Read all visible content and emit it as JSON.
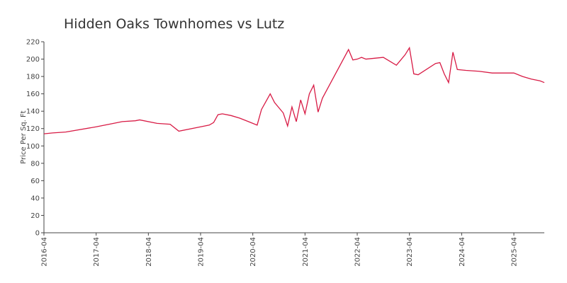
{
  "chart_data": {
    "type": "line",
    "title": "Hidden Oaks Townhomes vs Lutz",
    "ylabel": "Price Per Sq. Ft",
    "x": [
      "2016-04",
      "2016-06",
      "2016-09",
      "2017-04",
      "2017-08",
      "2017-10",
      "2018-01",
      "2018-02",
      "2018-06",
      "2018-09",
      "2018-11",
      "2019-04",
      "2019-06",
      "2019-07",
      "2019-08",
      "2019-09",
      "2019-11",
      "2020-01",
      "2020-03",
      "2020-05",
      "2020-06",
      "2020-08",
      "2020-09",
      "2020-11",
      "2020-12",
      "2021-01",
      "2021-02",
      "2021-03",
      "2021-04",
      "2021-05",
      "2021-06",
      "2021-07",
      "2021-08",
      "2022-02",
      "2022-03",
      "2022-04",
      "2022-05",
      "2022-06",
      "2022-08",
      "2022-10",
      "2023-01",
      "2023-02",
      "2023-03",
      "2023-04",
      "2023-05",
      "2023-06",
      "2023-10",
      "2023-11",
      "2023-12",
      "2024-01",
      "2024-02",
      "2024-03",
      "2024-05",
      "2024-08",
      "2024-11",
      "2025-04",
      "2025-06",
      "2025-08",
      "2025-10",
      "2025-11"
    ],
    "series": [
      {
        "name": "Hidden Oaks Townhomes",
        "color": "#d81b45",
        "values": [
          114,
          115,
          116,
          122,
          126,
          128,
          129,
          130,
          126,
          125,
          117,
          122,
          124,
          127,
          136,
          137,
          135,
          132,
          128,
          124,
          142,
          160,
          150,
          138,
          123,
          145,
          128,
          153,
          137,
          160,
          170,
          139,
          155,
          211,
          199,
          200,
          202,
          200,
          201,
          202,
          193,
          199,
          205,
          213,
          183,
          182,
          195,
          196,
          183,
          173,
          208,
          188,
          187,
          186,
          184,
          184,
          180,
          177,
          175,
          173
        ]
      }
    ],
    "xlim": [
      "2016-04",
      "2025-11"
    ],
    "xticks": [
      "2016-04",
      "2017-04",
      "2018-04",
      "2019-04",
      "2020-04",
      "2021-04",
      "2022-04",
      "2023-04",
      "2024-04",
      "2025-04"
    ],
    "ylim": [
      0,
      220
    ],
    "yticks": [
      0,
      20,
      40,
      60,
      80,
      100,
      120,
      140,
      160,
      180,
      200,
      220
    ],
    "grid": false
  }
}
